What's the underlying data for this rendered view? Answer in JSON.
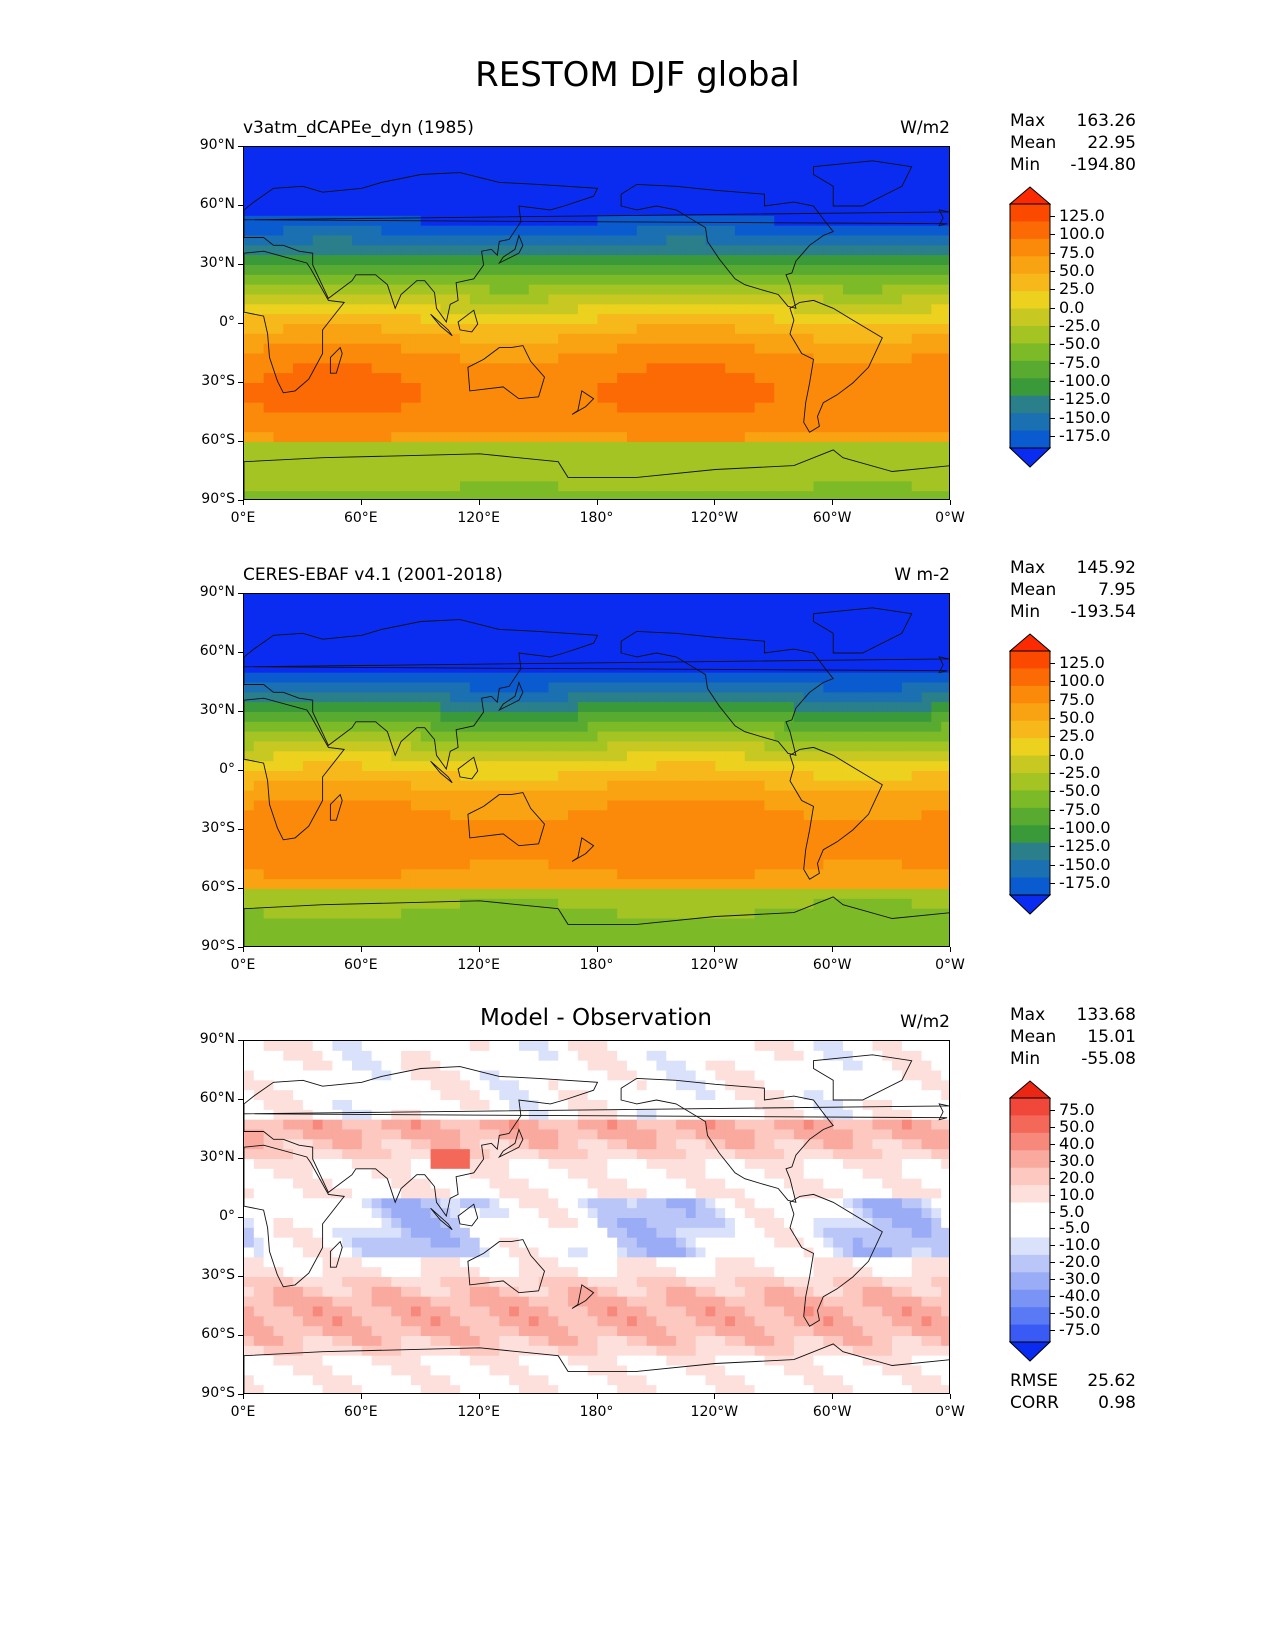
{
  "title": "RESTOM DJF global",
  "xticks": [
    "0°E",
    "60°E",
    "120°E",
    "180°",
    "120°W",
    "60°W",
    "0°W"
  ],
  "yticks": [
    "90°N",
    "60°N",
    "30°N",
    "0°",
    "30°S",
    "60°S",
    "90°S"
  ],
  "abs_colors": [
    "#0a2cf0",
    "#0a5ad0",
    "#1a70b0",
    "#2a7f8a",
    "#3a9a3a",
    "#58ab30",
    "#7dba28",
    "#a4c424",
    "#c7c922",
    "#ecd11e",
    "#f6b81a",
    "#f9a212",
    "#fb8a0a",
    "#fb6a04",
    "#fb4a00",
    "#fb2a00"
  ],
  "abs_cbar_labels": [
    "125.0",
    "100.0",
    "75.0",
    "50.0",
    "25.0",
    "0.0",
    "-25.0",
    "-50.0",
    "-75.0",
    "-100.0",
    "-125.0",
    "-150.0",
    "-175.0"
  ],
  "diff_colors": [
    "#0a2cf0",
    "#3a5af5",
    "#5a7af5",
    "#7a94f5",
    "#9aacf5",
    "#bac6f8",
    "#dae2fb",
    "#ffffff",
    "#ffffff",
    "#fde0dc",
    "#fcc8c0",
    "#faa99f",
    "#f7887c",
    "#f4685a",
    "#f1473a",
    "#ec2615"
  ],
  "diff_cbar_labels": [
    "75.0",
    "50.0",
    "40.0",
    "30.0",
    "20.0",
    "10.0",
    "5.0",
    "-5.0",
    "-10.0",
    "-20.0",
    "-30.0",
    "-40.0",
    "-50.0",
    "-75.0"
  ],
  "panels": [
    {
      "title": "v3atm_dCAPEe_dyn (1985)",
      "units": "W/m2",
      "stats": {
        "max_label": "Max",
        "max": "163.26",
        "mean_label": "Mean",
        "mean": "22.95",
        "min_label": "Min",
        "min": "-194.80"
      }
    },
    {
      "title": "CERES-EBAF v4.1 (2001-2018)",
      "units": "W m-2",
      "stats": {
        "max_label": "Max",
        "max": "145.92",
        "mean_label": "Mean",
        "mean": "7.95",
        "min_label": "Min",
        "min": "-193.54"
      }
    },
    {
      "title": "Model - Observation",
      "units": "W/m2",
      "stats": {
        "max_label": "Max",
        "max": "133.68",
        "mean_label": "Mean",
        "mean": "15.01",
        "min_label": "Min",
        "min": "-55.08"
      },
      "extra": {
        "rmse_label": "RMSE",
        "rmse": "25.62",
        "corr_label": "CORR",
        "corr": "0.98"
      }
    }
  ]
}
